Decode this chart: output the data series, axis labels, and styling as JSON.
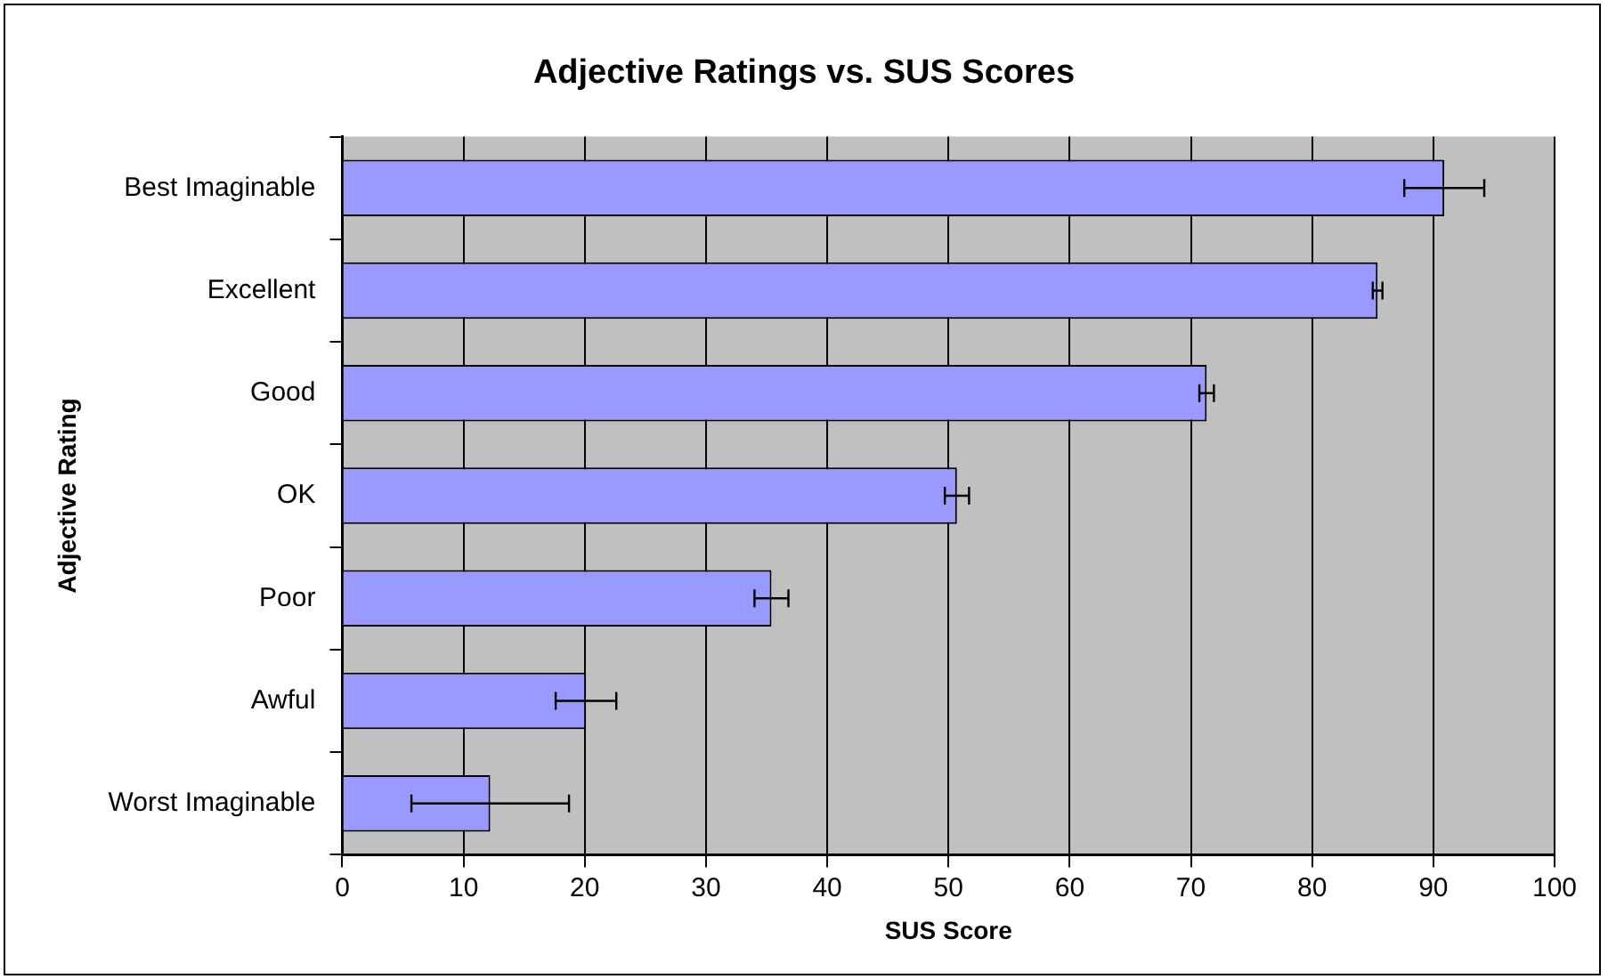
{
  "chart_data": {
    "type": "bar",
    "orientation": "horizontal",
    "title": "Adjective Ratings vs. SUS Scores",
    "xlabel": "SUS Score",
    "ylabel": "Adjective Rating",
    "categories": [
      "Best Imaginable",
      "Excellent",
      "Good",
      "OK",
      "Poor",
      "Awful",
      "Worst Imaginable"
    ],
    "values": [
      90.9,
      85.4,
      71.3,
      50.7,
      35.4,
      20.1,
      12.2
    ],
    "errors": [
      3.3,
      0.4,
      0.6,
      1.0,
      1.4,
      2.5,
      6.5
    ],
    "color": "#9999ff",
    "xlim": [
      0,
      100
    ],
    "xticks": [
      0,
      10,
      20,
      30,
      40,
      50,
      60,
      70,
      80,
      90,
      100
    ],
    "grid": "x",
    "legend": false
  }
}
